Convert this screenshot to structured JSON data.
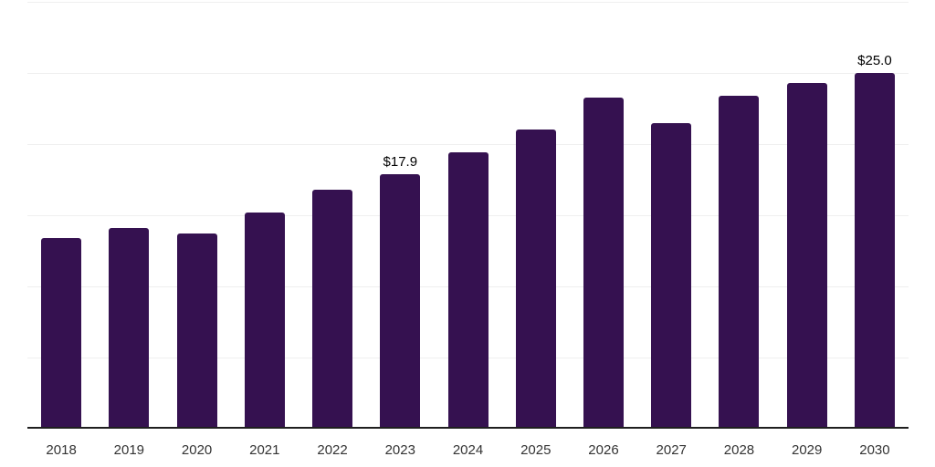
{
  "chart_data": {
    "type": "bar",
    "title": "",
    "xlabel": "",
    "ylabel": "",
    "categories": [
      "2018",
      "2019",
      "2020",
      "2021",
      "2022",
      "2023",
      "2024",
      "2025",
      "2026",
      "2027",
      "2028",
      "2029",
      "2030"
    ],
    "values": [
      13.4,
      14.1,
      13.7,
      15.2,
      16.8,
      17.9,
      19.4,
      21.0,
      23.3,
      21.5,
      23.4,
      24.3,
      25.0
    ],
    "labels": [
      null,
      null,
      null,
      null,
      null,
      "$17.9",
      null,
      null,
      null,
      null,
      null,
      null,
      "$25.0"
    ],
    "ylim": [
      0,
      30
    ],
    "gridline_step": 5,
    "grid": true,
    "legend": false,
    "colors": {
      "bar": "#351150",
      "gridline": "#efefef",
      "axis_line": "#1f1f1f",
      "tick_label": "#333333",
      "bar_label": "#000000",
      "background": "#ffffff"
    }
  }
}
